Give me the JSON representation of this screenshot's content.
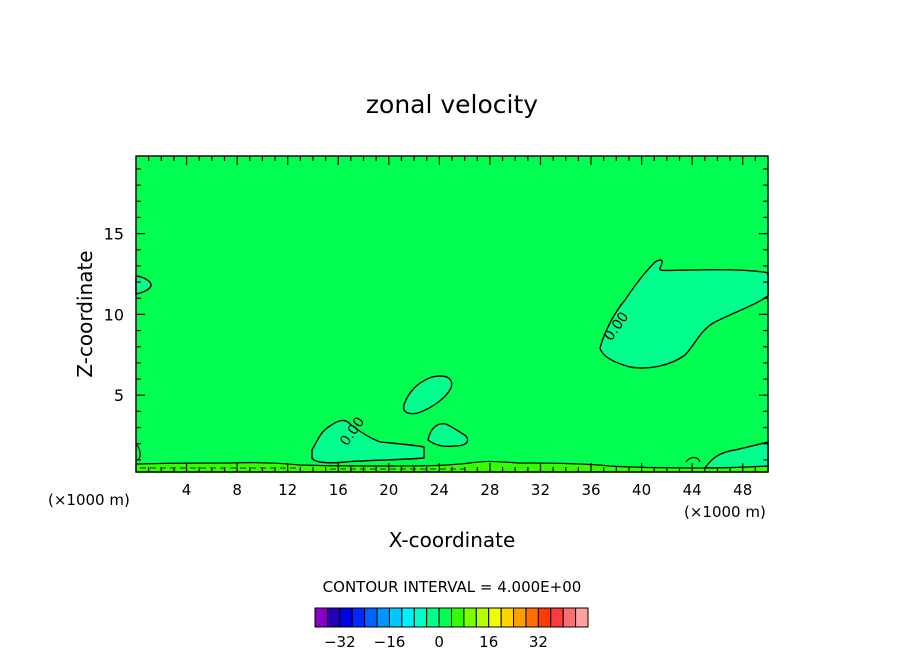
{
  "chart_data": {
    "type": "heatmap",
    "title": "zonal velocity",
    "xlabel": "X-coordinate",
    "ylabel": "Z-coordinate",
    "x_unit_left": "(×1000 m)",
    "x_unit_right": "(×1000 m)",
    "xlim": [
      0,
      50
    ],
    "ylim": [
      0.25,
      19.8
    ],
    "x_ticks": [
      4,
      8,
      12,
      16,
      20,
      24,
      28,
      32,
      36,
      40,
      44,
      48
    ],
    "y_ticks": [
      5,
      10,
      15
    ],
    "contour_interval_text": "CONTOUR INTERVAL = 4.000E+00",
    "contour_labels": [
      {
        "text": "0.00",
        "x": 38.3,
        "y": 9.1
      },
      {
        "text": "0.00",
        "x": 17.4,
        "y": 2.6
      }
    ],
    "colorbar": {
      "colors": [
        "#8a00c8",
        "#2800b4",
        "#0000e6",
        "#0028ff",
        "#0064ff",
        "#0096ff",
        "#00c8ff",
        "#00f0ff",
        "#00ffc8",
        "#00ff8c",
        "#00ff50",
        "#32ff00",
        "#78ff00",
        "#b4ff00",
        "#f0ff00",
        "#ffd200",
        "#ffa000",
        "#ff6e00",
        "#ff3c00",
        "#ff3c3c",
        "#ff6e6e",
        "#ffa0a0"
      ],
      "tick_labels": [
        "-32",
        "-16",
        "0",
        "16",
        "32"
      ],
      "tick_values": [
        -32,
        -16,
        0,
        16,
        32
      ],
      "vmin": -40,
      "vmax": 48
    },
    "background_color": "#00ff50",
    "positive_region_color": "#32ff00",
    "negative_region_color": "#00ff8c"
  }
}
